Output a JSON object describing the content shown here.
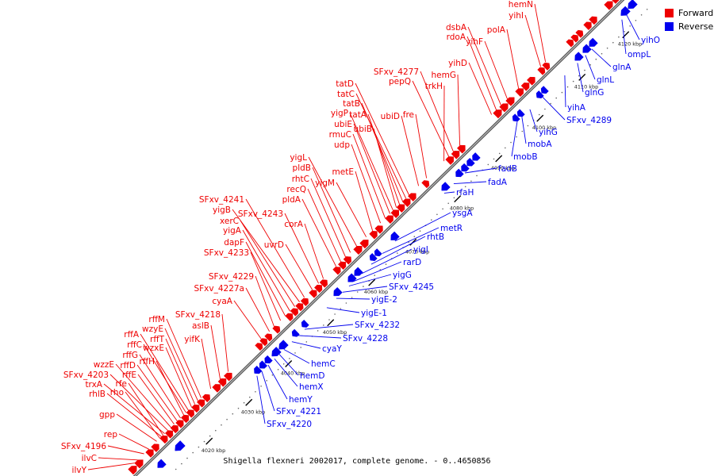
{
  "caption": "Shigella flexneri 2002017, complete genome. - 0..4650856",
  "legend": [
    {
      "label": "Forward",
      "color": "#ee0000"
    },
    {
      "label": "Reverse",
      "color": "#0000ee"
    }
  ],
  "colors": {
    "forward": "#ee0000",
    "reverse": "#0000ee",
    "backbone": "#888888"
  },
  "ticks": [
    "4020 kbp",
    "4030 kbp",
    "4040 kbp",
    "4050 kbp",
    "4060 kbp",
    "4070 kbp",
    "4080 kbp",
    "4090 kbp",
    "4100 kbp",
    "4110 kbp",
    "4120 kbp"
  ],
  "forward_genes": [
    "ilvY",
    "ilvC",
    "SFxv_4196",
    "rep",
    "gpp",
    "rhlB",
    "trxA",
    "SFxv_4203",
    "wzzE",
    "rho",
    "rfe",
    "rffE",
    "rffD",
    "rffG",
    "rffH",
    "rffC",
    "rffA",
    "wzxE",
    "rffT",
    "wzyE",
    "rffM",
    "yifK",
    "aslB",
    "SFxv_4218",
    "cyaA",
    "SFxv_4227a",
    "SFxv_4229",
    "SFxv_4233",
    "dapF",
    "yigA",
    "xerC",
    "yigB",
    "SFxv_4241",
    "uvrD",
    "SFxv_4243",
    "corA",
    "pldA",
    "recQ",
    "rhtC",
    "pldB",
    "yigL",
    "yigM",
    "metE",
    "udp",
    "rmuC",
    "ubiE",
    "yigP",
    "ubiB",
    "tatA",
    "tatB",
    "tatC",
    "tatD",
    "ubiD",
    "fre",
    "trkH",
    "pepQ",
    "SFxv_4277",
    "hemG",
    "yihD",
    "rdoA",
    "dsbA",
    "yihF",
    "polA",
    "yihI",
    "hemN"
  ],
  "reverse_genes": [
    "SFxv_4220",
    "SFxv_4221",
    "hemY",
    "hemX",
    "hemD",
    "hemC",
    "cyaY",
    "SFxv_4228",
    "SFxv_4232",
    "yigE-1",
    "yigE-2",
    "SFxv_4245",
    "yigG",
    "rarD",
    "yigI",
    "rhtB",
    "metR",
    "ysgA",
    "rfaH",
    "fadA",
    "fadB",
    "mobB",
    "mobA",
    "yihG",
    "SFxv_4289",
    "yihA",
    "glnG",
    "glnL",
    "glnA",
    "ompL",
    "yihO"
  ]
}
